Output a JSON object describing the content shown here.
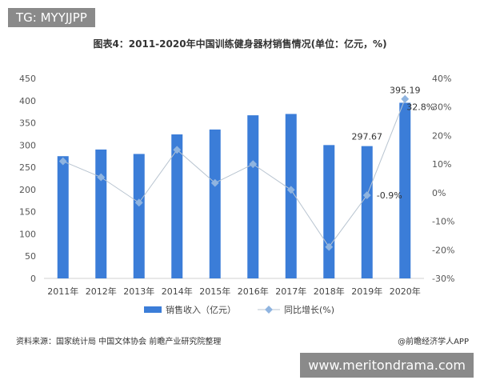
{
  "overlay_tag": "TG: MYYJJPP",
  "watermark": "www.meritondrama.com",
  "source": "资料来源：国家统计局 中国文体协会 前瞻产业研究院整理",
  "credit": "@前瞻经济学人APP",
  "chart_data": {
    "type": "bar",
    "title": "图表4：2011-2020年中国训练健身器材销售情况(单位：亿元，%)",
    "categories": [
      "2011年",
      "2012年",
      "2013年",
      "2014年",
      "2015年",
      "2016年",
      "2017年",
      "2018年",
      "2019年",
      "2020年"
    ],
    "series": [
      {
        "name": "销售收入（亿元）",
        "type": "bar",
        "axis": "left",
        "color": "#3b7dd8",
        "values": [
          275,
          290,
          280,
          324,
          335,
          367,
          370,
          300,
          297.67,
          395.19
        ]
      },
      {
        "name": "同比增长(%)",
        "type": "line",
        "axis": "right",
        "color": "#8fb4e0",
        "values": [
          11,
          5.4,
          -3.5,
          15,
          3.4,
          10,
          1,
          -19,
          -0.9,
          32.8
        ]
      }
    ],
    "data_labels": [
      {
        "index": 8,
        "text": "297.67"
      },
      {
        "index": 9,
        "text": "395.19"
      },
      {
        "index": 8,
        "text": "-0.9%"
      },
      {
        "index": 9,
        "text": "32.8%"
      }
    ],
    "y_left": {
      "ylim": [
        0,
        450
      ],
      "ticks": [
        "0",
        "50",
        "100",
        "150",
        "200",
        "250",
        "300",
        "350",
        "400",
        "450"
      ]
    },
    "y_right": {
      "ylim": [
        -30,
        40
      ],
      "ticks": [
        "-30%",
        "-20%",
        "-10%",
        "0%",
        "10%",
        "20%",
        "30%",
        "40%"
      ]
    },
    "legend": "bottom"
  }
}
